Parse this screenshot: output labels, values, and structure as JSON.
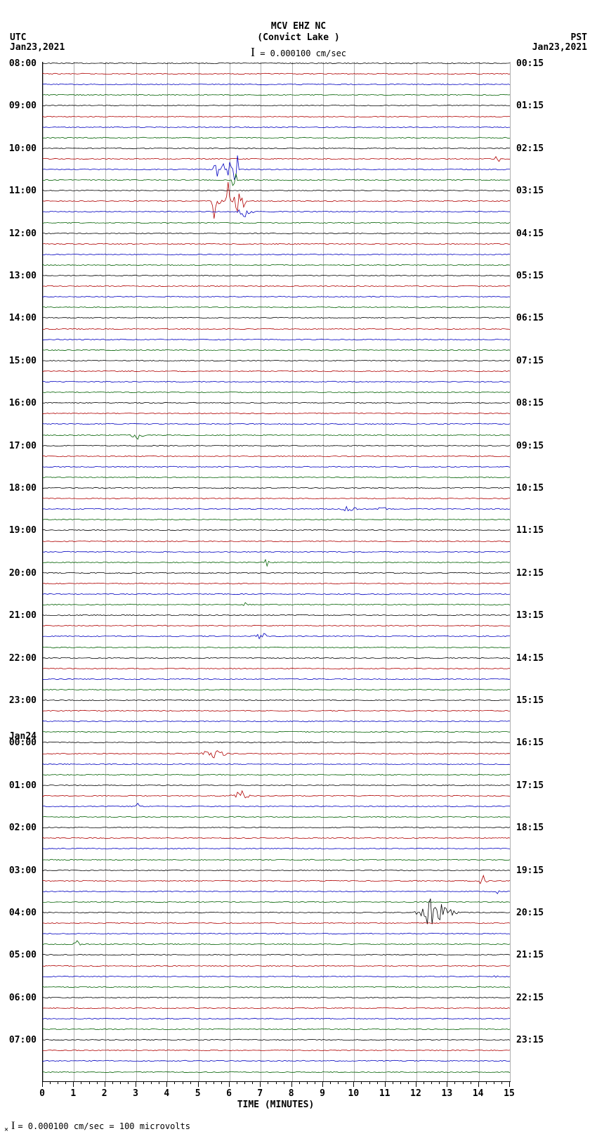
{
  "header": {
    "station": "MCV EHZ NC",
    "location": "(Convict Lake )",
    "scale_text": "= 0.000100 cm/sec"
  },
  "tz_left": {
    "label": "UTC",
    "date": "Jan23,2021"
  },
  "tz_right": {
    "label": "PST",
    "date": "Jan23,2021"
  },
  "plot": {
    "x_min": 0,
    "x_max": 15,
    "x_step": 1,
    "x_minor_per": 4,
    "x_title": "TIME (MINUTES)",
    "trace_colors": [
      "#000000",
      "#b00000",
      "#0000c0",
      "#006000"
    ],
    "n_traces": 96,
    "row_spacing": 15.1,
    "grid_color": "#b0b0b0",
    "background": "#ffffff",
    "left_labels": [
      {
        "row": 0,
        "text": "08:00"
      },
      {
        "row": 4,
        "text": "09:00"
      },
      {
        "row": 8,
        "text": "10:00"
      },
      {
        "row": 12,
        "text": "11:00"
      },
      {
        "row": 16,
        "text": "12:00"
      },
      {
        "row": 20,
        "text": "13:00"
      },
      {
        "row": 24,
        "text": "14:00"
      },
      {
        "row": 28,
        "text": "15:00"
      },
      {
        "row": 32,
        "text": "16:00"
      },
      {
        "row": 36,
        "text": "17:00"
      },
      {
        "row": 40,
        "text": "18:00"
      },
      {
        "row": 44,
        "text": "19:00"
      },
      {
        "row": 48,
        "text": "20:00"
      },
      {
        "row": 52,
        "text": "21:00"
      },
      {
        "row": 56,
        "text": "22:00"
      },
      {
        "row": 60,
        "text": "23:00"
      },
      {
        "row": 64,
        "text": "00:00",
        "day": "Jan24"
      },
      {
        "row": 68,
        "text": "01:00"
      },
      {
        "row": 72,
        "text": "02:00"
      },
      {
        "row": 76,
        "text": "03:00"
      },
      {
        "row": 80,
        "text": "04:00"
      },
      {
        "row": 84,
        "text": "05:00"
      },
      {
        "row": 88,
        "text": "06:00"
      },
      {
        "row": 92,
        "text": "07:00"
      }
    ],
    "right_labels": [
      {
        "row": 0,
        "text": "00:15"
      },
      {
        "row": 4,
        "text": "01:15"
      },
      {
        "row": 8,
        "text": "02:15"
      },
      {
        "row": 12,
        "text": "03:15"
      },
      {
        "row": 16,
        "text": "04:15"
      },
      {
        "row": 20,
        "text": "05:15"
      },
      {
        "row": 24,
        "text": "06:15"
      },
      {
        "row": 28,
        "text": "07:15"
      },
      {
        "row": 32,
        "text": "08:15"
      },
      {
        "row": 36,
        "text": "09:15"
      },
      {
        "row": 40,
        "text": "10:15"
      },
      {
        "row": 44,
        "text": "11:15"
      },
      {
        "row": 48,
        "text": "12:15"
      },
      {
        "row": 52,
        "text": "13:15"
      },
      {
        "row": 56,
        "text": "14:15"
      },
      {
        "row": 60,
        "text": "15:15"
      },
      {
        "row": 64,
        "text": "16:15"
      },
      {
        "row": 68,
        "text": "17:15"
      },
      {
        "row": 72,
        "text": "18:15"
      },
      {
        "row": 76,
        "text": "19:15"
      },
      {
        "row": 80,
        "text": "20:15"
      },
      {
        "row": 84,
        "text": "21:15"
      },
      {
        "row": 88,
        "text": "22:15"
      },
      {
        "row": 92,
        "text": "23:15"
      }
    ],
    "events": [
      {
        "row": 9,
        "x": 14.6,
        "amp": 8,
        "width": 0.15
      },
      {
        "row": 10,
        "x": 5.55,
        "amp": 28,
        "width": 0.08
      },
      {
        "row": 10,
        "x": 5.75,
        "amp": 30,
        "width": 0.08
      },
      {
        "row": 10,
        "x": 6.0,
        "amp": 30,
        "width": 0.08
      },
      {
        "row": 10,
        "x": 6.2,
        "amp": 40,
        "width": 0.1
      },
      {
        "row": 11,
        "x": 6.15,
        "amp": 20,
        "width": 0.1
      },
      {
        "row": 13,
        "x": 5.5,
        "amp": 34,
        "width": 0.08
      },
      {
        "row": 13,
        "x": 5.7,
        "amp": 36,
        "width": 0.08
      },
      {
        "row": 13,
        "x": 5.95,
        "amp": 35,
        "width": 0.08
      },
      {
        "row": 13,
        "x": 6.3,
        "amp": 22,
        "width": 0.25
      },
      {
        "row": 14,
        "x": 6.5,
        "amp": 10,
        "width": 0.3
      },
      {
        "row": 35,
        "x": 3.1,
        "amp": 7,
        "width": 0.35
      },
      {
        "row": 42,
        "x": 9.85,
        "amp": 7,
        "width": 0.3
      },
      {
        "row": 42,
        "x": 10.9,
        "amp": 5,
        "width": 0.2
      },
      {
        "row": 47,
        "x": 7.15,
        "amp": 10,
        "width": 0.15
      },
      {
        "row": 51,
        "x": 6.5,
        "amp": 4,
        "width": 0.1
      },
      {
        "row": 54,
        "x": 7.0,
        "amp": 8,
        "width": 0.25
      },
      {
        "row": 65,
        "x": 5.5,
        "amp": 6,
        "width": 0.7
      },
      {
        "row": 69,
        "x": 6.35,
        "amp": 9,
        "width": 0.35
      },
      {
        "row": 70,
        "x": 3.05,
        "amp": 5,
        "width": 0.1
      },
      {
        "row": 77,
        "x": 14.1,
        "amp": 12,
        "width": 0.2
      },
      {
        "row": 78,
        "x": 14.6,
        "amp": 5,
        "width": 0.1
      },
      {
        "row": 80,
        "x": 12.5,
        "amp": 25,
        "width": 0.6
      },
      {
        "row": 80,
        "x": 13.0,
        "amp": 10,
        "width": 0.4
      },
      {
        "row": 83,
        "x": 1.1,
        "amp": 6,
        "width": 0.15
      },
      {
        "row": 86,
        "x": 14.55,
        "amp": 5,
        "width": 0.1
      }
    ]
  },
  "footer": "= 0.000100 cm/sec =    100 microvolts"
}
